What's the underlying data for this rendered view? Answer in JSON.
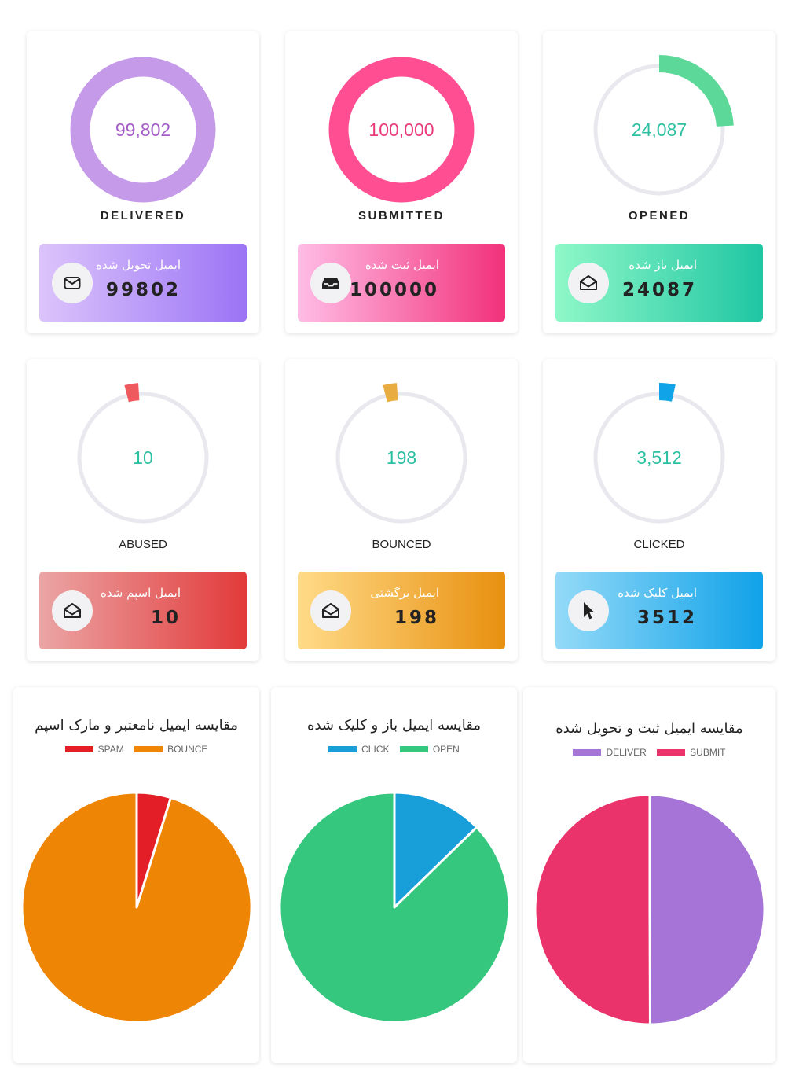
{
  "cards": [
    {
      "id": "delivered",
      "value": "99,802",
      "label": "DELIVERED",
      "bold": true,
      "fraction": 1.0,
      "ring_color": "#c59ae8",
      "value_color": "#a55dc8",
      "track_color": "#e8e8ee",
      "arc_start": 0,
      "box_text": "ایمیل تحویل شده",
      "box_number": "99802",
      "grad_from": "#dcc4fb",
      "grad_to": "#9b74f5",
      "icon": "envelope-icon"
    },
    {
      "id": "submitted",
      "value": "100,000",
      "label": "SUBMITTED",
      "bold": true,
      "fraction": 1.0,
      "ring_color": "#ff4f92",
      "value_color": "#e93a7a",
      "track_color": "#e8e8ee",
      "arc_start": 0,
      "box_text": "ایمیل ثبت شده",
      "box_number": "100000",
      "grad_from": "#ffbde6",
      "grad_to": "#f2317a",
      "icon": "inbox-icon"
    },
    {
      "id": "opened",
      "value": "24,087",
      "label": "OPENED",
      "bold": true,
      "fraction": 0.24087,
      "ring_color": "#5cd898",
      "value_color": "#2cc0a2",
      "track_color": "#e8e8ee",
      "arc_start": 0,
      "box_text": "ایمیل باز شده",
      "box_number": "24087",
      "grad_from": "#8ff8c8",
      "grad_to": "#1fc6a3",
      "icon": "envelope-open-icon"
    },
    {
      "id": "abused",
      "value": "10",
      "label": "ABUSED",
      "bold": false,
      "fraction": 0.0001,
      "ring_color": "#ef5a5e",
      "value_color": "#2cc0a2",
      "track_color": "#e8e8ee",
      "arc_start": -0.04,
      "box_text": "ایمیل اسپم شده",
      "box_number": "10",
      "grad_from": "#eba5a5",
      "grad_to": "#e23a3a",
      "icon": "envelope-open-icon"
    },
    {
      "id": "bounced",
      "value": "198",
      "label": "BOUNCED",
      "bold": false,
      "fraction": 0.00198,
      "ring_color": "#e8ac40",
      "value_color": "#2cc0a2",
      "track_color": "#e8e8ee",
      "arc_start": -0.04,
      "box_text": "ایمیل برگشتی",
      "box_number": "198",
      "grad_from": "#ffdb88",
      "grad_to": "#e8900f",
      "icon": "envelope-open-icon"
    },
    {
      "id": "clicked",
      "value": "3,512",
      "label": "CLICKED",
      "bold": false,
      "fraction": 0.03512,
      "ring_color": "#11a3e8",
      "value_color": "#2cc0a2",
      "track_color": "#e8e8ee",
      "arc_start": 0,
      "box_text": "ایمیل کلیک شده",
      "box_number": "3512",
      "grad_from": "#94daf8",
      "grad_to": "#10a2e8",
      "icon": "cursor-icon"
    }
  ],
  "chart_data": [
    {
      "type": "pie",
      "title": "مقایسه ایمیل نامعتبر و مارک اسپم",
      "categories": [
        "SPAM",
        "BOUNCE"
      ],
      "values": [
        10,
        198
      ],
      "colors": [
        "#e41e26",
        "#ee8504"
      ]
    },
    {
      "type": "pie",
      "title": "مقایسه ایمیل باز و کلیک شده",
      "categories": [
        "CLICK",
        "OPEN"
      ],
      "values": [
        3512,
        24087
      ],
      "colors": [
        "#189fda",
        "#35c77d"
      ]
    },
    {
      "type": "pie",
      "title": "مقایسه ایمیل ثبت و تحویل شده",
      "categories": [
        "DELIVER",
        "SUBMIT"
      ],
      "values": [
        99802,
        100000
      ],
      "colors": [
        "#a574d6",
        "#ea326b"
      ]
    }
  ]
}
